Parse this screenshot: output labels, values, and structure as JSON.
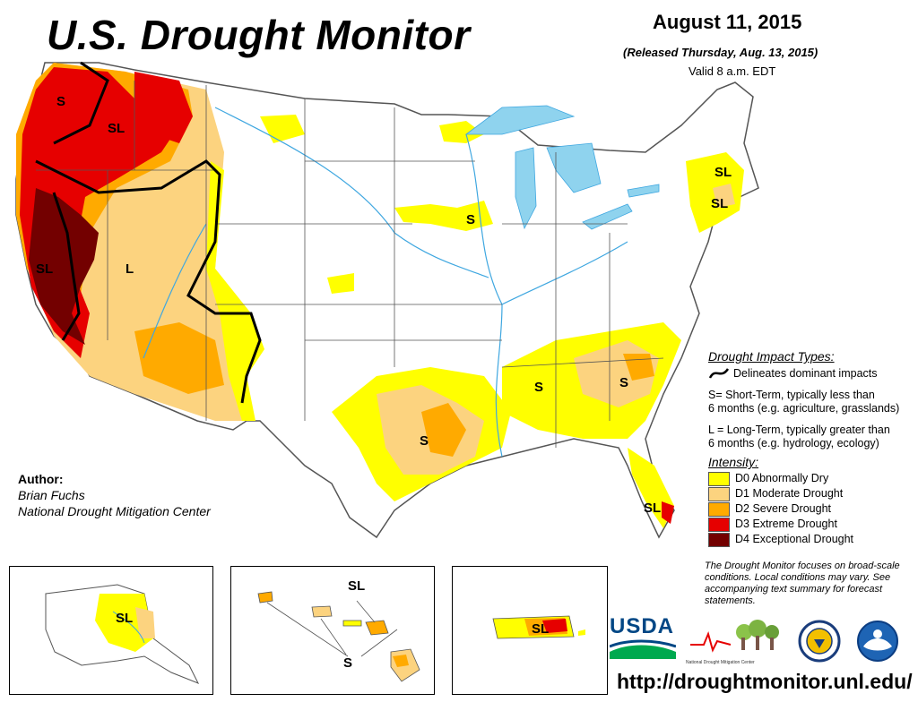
{
  "header": {
    "title": "U.S. Drought Monitor",
    "date": "August 11, 2015",
    "released": "(Released Thursday, Aug. 13, 2015)",
    "valid": "Valid 8 a.m. EDT"
  },
  "author": {
    "heading": "Author:",
    "name": "Brian Fuchs",
    "org": "National Drought Mitigation Center"
  },
  "impact_legend": {
    "heading": "Drought Impact Types:",
    "line_label": "Delineates dominant impacts",
    "short_term_1": "S= Short-Term, typically less than",
    "short_term_2": "6 months (e.g. agriculture, grasslands)",
    "long_term_1": "L = Long-Term, typically greater than",
    "long_term_2": "6 months (e.g. hydrology, ecology)"
  },
  "intensity_legend": {
    "heading": "Intensity:",
    "items": [
      {
        "label": "D0 Abnormally Dry",
        "color": "#FFFF00"
      },
      {
        "label": "D1 Moderate Drought",
        "color": "#FCD37F"
      },
      {
        "label": "D2 Severe Drought",
        "color": "#FFAA00"
      },
      {
        "label": "D3 Extreme Drought",
        "color": "#E60000"
      },
      {
        "label": "D4 Exceptional Drought",
        "color": "#730000"
      }
    ]
  },
  "note": "The Drought Monitor focuses on broad-scale conditions. Local conditions may vary. See accompanying text summary for forecast statements.",
  "logos": {
    "usda": "USDA",
    "ndmc": "National Drought Mitigation Center"
  },
  "url": "http://droughtmonitor.unl.edu/",
  "map_labels": {
    "s": "S",
    "sl": "SL",
    "l": "L"
  },
  "colors": {
    "water": "#8FD3EE",
    "river": "#3FA7E0",
    "boundary": "#555555"
  }
}
